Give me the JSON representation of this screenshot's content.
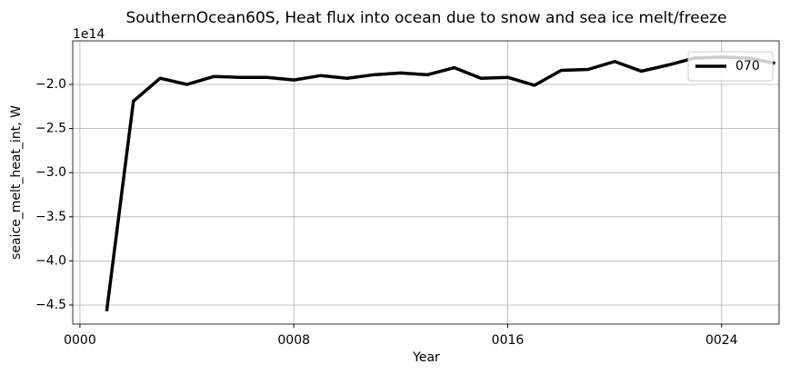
{
  "chart_data": {
    "type": "line",
    "title": "SouthernOcean60S, Heat flux into ocean due to snow and sea ice melt/freeze",
    "x_label": "Year",
    "y_label": "seaice_melt_heat_int, W",
    "y_offset_label": "1e14",
    "x": [
      1,
      2,
      3,
      4,
      5,
      6,
      7,
      8,
      9,
      10,
      11,
      12,
      13,
      14,
      15,
      16,
      17,
      18,
      19,
      20,
      21,
      22,
      23,
      24,
      25,
      26
    ],
    "series": [
      {
        "name": "070",
        "color": "#000000",
        "values": [
          -4.57,
          -2.19,
          -1.93,
          -2.0,
          -1.91,
          -1.92,
          -1.92,
          -1.95,
          -1.9,
          -1.93,
          -1.89,
          -1.87,
          -1.89,
          -1.81,
          -1.93,
          -1.92,
          -2.01,
          -1.84,
          -1.83,
          -1.74,
          -1.85,
          -1.78,
          -1.7,
          -1.69,
          -1.7,
          -1.76
        ]
      }
    ],
    "xlim": [
      -0.27,
      26.15
    ],
    "ylim": [
      -4.716,
      -1.506
    ],
    "xticks": [
      {
        "value": 0,
        "label": "0000"
      },
      {
        "value": 8,
        "label": "0008"
      },
      {
        "value": 16,
        "label": "0016"
      },
      {
        "value": 24,
        "label": "0024"
      }
    ],
    "yticks": [
      {
        "value": -4.5,
        "label": "−4.5"
      },
      {
        "value": -4.0,
        "label": "−4.0"
      },
      {
        "value": -3.5,
        "label": "−3.5"
      },
      {
        "value": -3.0,
        "label": "−3.0"
      },
      {
        "value": -2.5,
        "label": "−2.5"
      },
      {
        "value": -2.0,
        "label": "−2.0"
      }
    ],
    "grid": true,
    "legend": "upper right"
  }
}
